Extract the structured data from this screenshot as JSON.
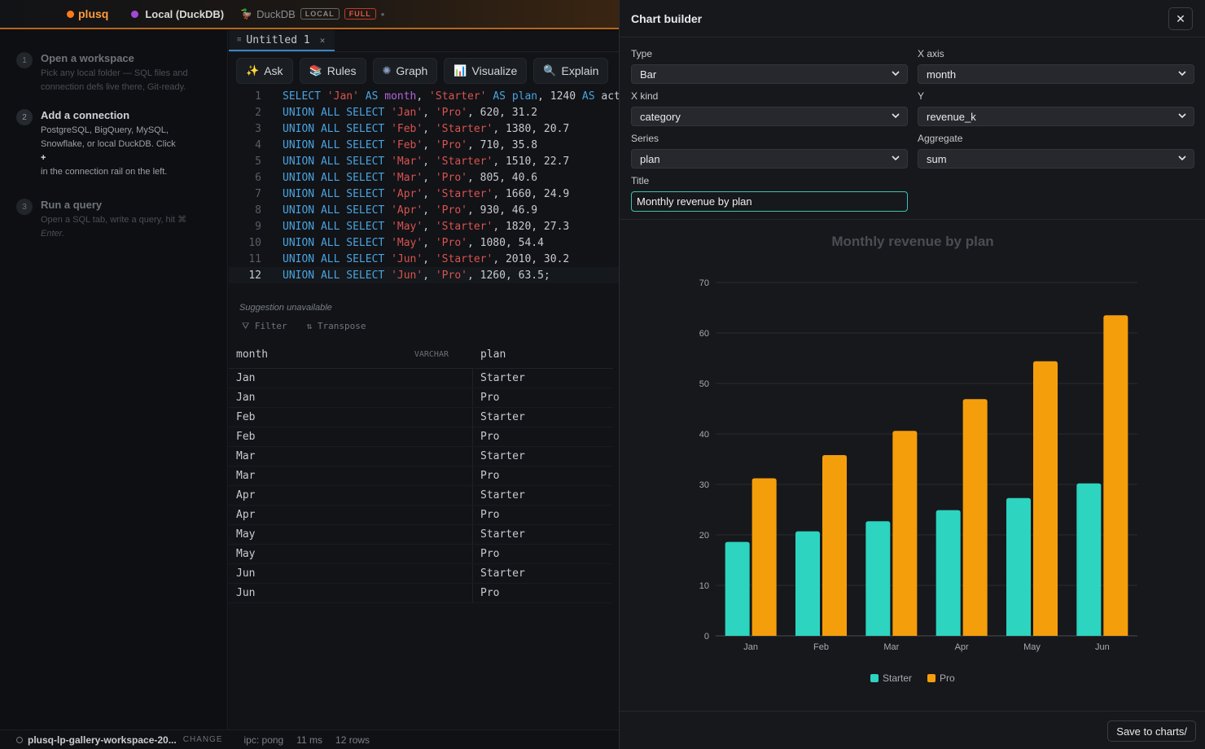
{
  "topbar": {
    "brand": "plusq",
    "connection": "Local (DuckDB)",
    "engine": "DuckDB",
    "badge_local": "LOCAL",
    "badge_full": "FULL"
  },
  "onboarding": {
    "steps": [
      {
        "num": "1",
        "title": "Open a workspace",
        "desc": "Pick any local folder — SQL files and connection defs live there, Git-ready."
      },
      {
        "num": "2",
        "title": "Add a connection",
        "desc": "PostgreSQL, BigQuery, MySQL, Snowflake, or local DuckDB. Click",
        "plus": "+",
        "desc2": "in the connection rail on the left."
      },
      {
        "num": "3",
        "title": "Run a query",
        "desc": "Open a SQL tab, write a query, hit ⌘",
        "desc2": "Enter."
      }
    ]
  },
  "editor": {
    "tab_label": "Untitled 1",
    "tools": [
      "Ask",
      "Rules",
      "Graph",
      "Visualize",
      "Explain"
    ],
    "suggestion": "Suggestion unavailable",
    "filter_label": "Filter",
    "transpose_label": "Transpose"
  },
  "code_lines": [
    {
      "n": "1",
      "parts": [
        [
          "kw",
          "SELECT "
        ],
        [
          "str",
          "'Jan'"
        ],
        [
          "kw",
          " AS "
        ],
        [
          "id",
          "month"
        ],
        [
          "pl",
          ", "
        ],
        [
          "str",
          "'Starter'"
        ],
        [
          "kw",
          " AS "
        ],
        [
          "kw",
          "plan"
        ],
        [
          "pl",
          ", 1240 "
        ],
        [
          "kw",
          "AS"
        ],
        [
          "pl",
          " act"
        ]
      ]
    },
    {
      "n": "2",
      "parts": [
        [
          "kw",
          "UNION ALL SELECT "
        ],
        [
          "str",
          "'Jan'"
        ],
        [
          "pl",
          ", "
        ],
        [
          "str",
          "'Pro'"
        ],
        [
          "pl",
          ", 620, 31.2"
        ]
      ]
    },
    {
      "n": "3",
      "parts": [
        [
          "kw",
          "UNION ALL SELECT "
        ],
        [
          "str",
          "'Feb'"
        ],
        [
          "pl",
          ", "
        ],
        [
          "str",
          "'Starter'"
        ],
        [
          "pl",
          ", 1380, 20.7"
        ]
      ]
    },
    {
      "n": "4",
      "parts": [
        [
          "kw",
          "UNION ALL SELECT "
        ],
        [
          "str",
          "'Feb'"
        ],
        [
          "pl",
          ", "
        ],
        [
          "str",
          "'Pro'"
        ],
        [
          "pl",
          ", 710, 35.8"
        ]
      ]
    },
    {
      "n": "5",
      "parts": [
        [
          "kw",
          "UNION ALL SELECT "
        ],
        [
          "str",
          "'Mar'"
        ],
        [
          "pl",
          ", "
        ],
        [
          "str",
          "'Starter'"
        ],
        [
          "pl",
          ", 1510, 22.7"
        ]
      ]
    },
    {
      "n": "6",
      "parts": [
        [
          "kw",
          "UNION ALL SELECT "
        ],
        [
          "str",
          "'Mar'"
        ],
        [
          "pl",
          ", "
        ],
        [
          "str",
          "'Pro'"
        ],
        [
          "pl",
          ", 805, 40.6"
        ]
      ]
    },
    {
      "n": "7",
      "parts": [
        [
          "kw",
          "UNION ALL SELECT "
        ],
        [
          "str",
          "'Apr'"
        ],
        [
          "pl",
          ", "
        ],
        [
          "str",
          "'Starter'"
        ],
        [
          "pl",
          ", 1660, 24.9"
        ]
      ]
    },
    {
      "n": "8",
      "parts": [
        [
          "kw",
          "UNION ALL SELECT "
        ],
        [
          "str",
          "'Apr'"
        ],
        [
          "pl",
          ", "
        ],
        [
          "str",
          "'Pro'"
        ],
        [
          "pl",
          ", 930, 46.9"
        ]
      ]
    },
    {
      "n": "9",
      "parts": [
        [
          "kw",
          "UNION ALL SELECT "
        ],
        [
          "str",
          "'May'"
        ],
        [
          "pl",
          ", "
        ],
        [
          "str",
          "'Starter'"
        ],
        [
          "pl",
          ", 1820, 27.3"
        ]
      ]
    },
    {
      "n": "10",
      "parts": [
        [
          "kw",
          "UNION ALL SELECT "
        ],
        [
          "str",
          "'May'"
        ],
        [
          "pl",
          ", "
        ],
        [
          "str",
          "'Pro'"
        ],
        [
          "pl",
          ", 1080, 54.4"
        ]
      ]
    },
    {
      "n": "11",
      "parts": [
        [
          "kw",
          "UNION ALL SELECT "
        ],
        [
          "str",
          "'Jun'"
        ],
        [
          "pl",
          ", "
        ],
        [
          "str",
          "'Starter'"
        ],
        [
          "pl",
          ", 2010, 30.2"
        ]
      ]
    },
    {
      "n": "12",
      "parts": [
        [
          "kw",
          "UNION ALL SELECT "
        ],
        [
          "str",
          "'Jun'"
        ],
        [
          "pl",
          ", "
        ],
        [
          "str",
          "'Pro'"
        ],
        [
          "pl",
          ", 1260, 63.5;"
        ]
      ]
    }
  ],
  "results": {
    "columns": [
      {
        "name": "month",
        "type": "VARCHAR"
      },
      {
        "name": "plan"
      }
    ],
    "rows": [
      [
        "Jan",
        "Starter"
      ],
      [
        "Jan",
        "Pro"
      ],
      [
        "Feb",
        "Starter"
      ],
      [
        "Feb",
        "Pro"
      ],
      [
        "Mar",
        "Starter"
      ],
      [
        "Mar",
        "Pro"
      ],
      [
        "Apr",
        "Starter"
      ],
      [
        "Apr",
        "Pro"
      ],
      [
        "May",
        "Starter"
      ],
      [
        "May",
        "Pro"
      ],
      [
        "Jun",
        "Starter"
      ],
      [
        "Jun",
        "Pro"
      ]
    ]
  },
  "status": {
    "workspace": "plusq-lp-gallery-workspace-20...",
    "change": "CHANGE",
    "ipc": "ipc: pong",
    "latency": "11 ms",
    "rows": "12 rows"
  },
  "builder": {
    "title": "Chart builder",
    "fields": {
      "type": {
        "label": "Type",
        "value": "Bar"
      },
      "xaxis": {
        "label": "X axis",
        "value": "month"
      },
      "xkind": {
        "label": "X kind",
        "value": "category"
      },
      "y": {
        "label": "Y",
        "value": "revenue_k"
      },
      "series": {
        "label": "Series",
        "value": "plan"
      },
      "aggregate": {
        "label": "Aggregate",
        "value": "sum"
      },
      "title": {
        "label": "Title",
        "value": "Monthly revenue by plan"
      }
    },
    "save_label": "Save to charts/"
  },
  "colors": {
    "starter": "#2dd4bf",
    "pro": "#f59e0b"
  },
  "chart_data": {
    "type": "bar",
    "title": "Monthly revenue by plan",
    "categories": [
      "Jan",
      "Feb",
      "Mar",
      "Apr",
      "May",
      "Jun"
    ],
    "series": [
      {
        "name": "Starter",
        "values": [
          18.6,
          20.7,
          22.7,
          24.9,
          27.3,
          30.2
        ]
      },
      {
        "name": "Pro",
        "values": [
          31.2,
          35.8,
          40.6,
          46.9,
          54.4,
          63.5
        ]
      }
    ],
    "ylim": [
      0,
      70
    ],
    "yticks": [
      0,
      10,
      20,
      30,
      40,
      50,
      60,
      70
    ],
    "grid": true,
    "legend": "bottom"
  }
}
